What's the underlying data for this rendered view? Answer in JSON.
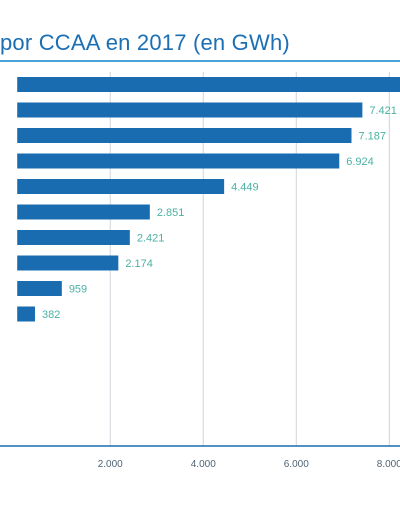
{
  "colors": {
    "title": "#1a6fb5",
    "title_rule": "#4aa3d8",
    "bar": "#1a6cb0",
    "value_label": "#4ab1a3",
    "grid": "#cfd4da",
    "axis": "#1a6cb0",
    "tick_label": "#4f6475"
  },
  "chart_data": {
    "type": "bar",
    "orientation": "horizontal",
    "title": "por CCAA en 2017 (en GWh)",
    "values": [
      8250,
      7421,
      7187,
      6924,
      4449,
      2851,
      2421,
      2174,
      959,
      382
    ],
    "value_labels": [
      "",
      "7.421",
      "7.187",
      "6.924",
      "4.449",
      "2.851",
      "2.421",
      "2.174",
      "959",
      "382"
    ],
    "x_ticks": [
      2000,
      4000,
      6000,
      8000
    ],
    "x_tick_labels": [
      "2.000",
      "4.000",
      "6.000",
      "8.000"
    ],
    "xlim": [
      -370,
      8230
    ],
    "grid": true
  }
}
